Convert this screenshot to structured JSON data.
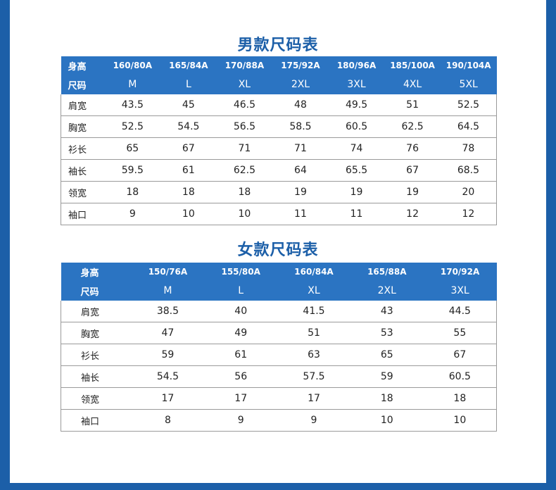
{
  "men": {
    "title": "男款尺码表",
    "height_label": "身高",
    "size_label": "尺码",
    "heights": [
      "160/80A",
      "165/84A",
      "170/88A",
      "175/92A",
      "180/96A",
      "185/100A",
      "190/104A"
    ],
    "sizes": [
      "M",
      "L",
      "XL",
      "2XL",
      "3XL",
      "4XL",
      "5XL"
    ],
    "rows": [
      {
        "label": "肩宽",
        "values": [
          "43.5",
          "45",
          "46.5",
          "48",
          "49.5",
          "51",
          "52.5"
        ]
      },
      {
        "label": "胸宽",
        "values": [
          "52.5",
          "54.5",
          "56.5",
          "58.5",
          "60.5",
          "62.5",
          "64.5"
        ]
      },
      {
        "label": "衫长",
        "values": [
          "65",
          "67",
          "71",
          "71",
          "74",
          "76",
          "78"
        ]
      },
      {
        "label": "袖长",
        "values": [
          "59.5",
          "61",
          "62.5",
          "64",
          "65.5",
          "67",
          "68.5"
        ]
      },
      {
        "label": "领宽",
        "values": [
          "18",
          "18",
          "18",
          "19",
          "19",
          "19",
          "20"
        ]
      },
      {
        "label": "袖口",
        "values": [
          "9",
          "10",
          "10",
          "11",
          "11",
          "12",
          "12"
        ]
      }
    ]
  },
  "women": {
    "title": "女款尺码表",
    "height_label": "身高",
    "size_label": "尺码",
    "heights": [
      "150/76A",
      "155/80A",
      "160/84A",
      "165/88A",
      "170/92A"
    ],
    "sizes": [
      "M",
      "L",
      "XL",
      "2XL",
      "3XL"
    ],
    "rows": [
      {
        "label": "肩宽",
        "values": [
          "38.5",
          "40",
          "41.5",
          "43",
          "44.5"
        ]
      },
      {
        "label": "胸宽",
        "values": [
          "47",
          "49",
          "51",
          "53",
          "55"
        ]
      },
      {
        "label": "衫长",
        "values": [
          "59",
          "61",
          "63",
          "65",
          "67"
        ]
      },
      {
        "label": "袖长",
        "values": [
          "54.5",
          "56",
          "57.5",
          "59",
          "60.5"
        ]
      },
      {
        "label": "领宽",
        "values": [
          "17",
          "17",
          "17",
          "18",
          "18"
        ]
      },
      {
        "label": "袖口",
        "values": [
          "8",
          "9",
          "9",
          "10",
          "10"
        ]
      }
    ]
  },
  "colors": {
    "accent": "#1c5fa8",
    "header_bg": "#2b74c2"
  }
}
